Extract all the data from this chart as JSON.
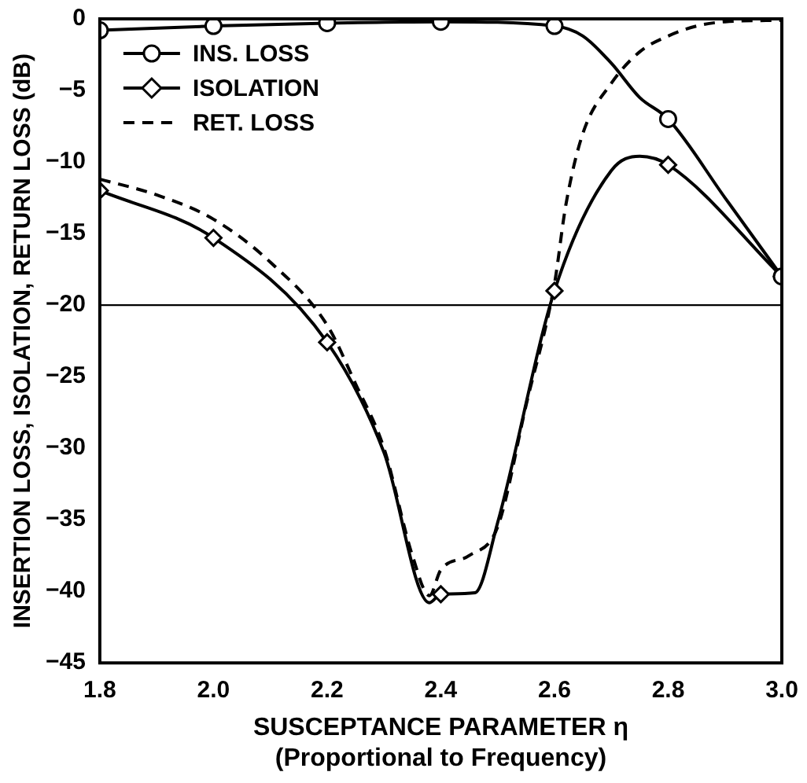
{
  "chart_data": {
    "type": "line",
    "xlabel": "SUSCEPTANCE PARAMETER η",
    "ylabel": "INSERTION LOSS, ISOLATION, RETURN LOSS (dB)",
    "annotations": [
      "(Proportional to Frequency)"
    ],
    "xlim": [
      1.8,
      3.0
    ],
    "xticks": [
      {
        "value": 1.8,
        "label": "1.8"
      },
      {
        "value": 2.0,
        "label": "2.0"
      },
      {
        "value": 2.2,
        "label": "2.2"
      },
      {
        "value": 2.4,
        "label": "2.4"
      },
      {
        "value": 2.6,
        "label": "2.6"
      },
      {
        "value": 2.8,
        "label": "2.8"
      },
      {
        "value": 3.0,
        "label": "3.0"
      }
    ],
    "ylim": [
      -45,
      0
    ],
    "yticks": [
      -45,
      -40,
      -35,
      -30,
      -25,
      -20,
      -15,
      -10,
      -5,
      0
    ],
    "grid": false,
    "legend": "top left",
    "ref_lines": [
      {
        "axis": "y",
        "value": -20,
        "color": "#000000"
      }
    ],
    "series": [
      {
        "name": "INS. LOSS",
        "color": "#000000",
        "marker": "circle",
        "line_style": "solid",
        "x": [
          1.8,
          2.0,
          2.2,
          2.4,
          2.6,
          2.65,
          2.7,
          2.75,
          2.8,
          2.9,
          3.0
        ],
        "values": [
          -0.8,
          -0.5,
          -0.3,
          -0.2,
          -0.5,
          -1.2,
          -3.1,
          -5.5,
          -7,
          -12.5,
          -18
        ]
      },
      {
        "name": "ISOLATION",
        "color": "#000000",
        "marker": "diamond",
        "line_style": "solid",
        "x": [
          1.8,
          2.0,
          2.2,
          2.3,
          2.38,
          2.4,
          2.46,
          2.5,
          2.6,
          2.7,
          2.75,
          2.8,
          3.0
        ],
        "values": [
          -12,
          -15.3,
          -22.6,
          -30.3,
          -40.8,
          -40.2,
          -40.1,
          -35.2,
          -19,
          -10.6,
          -9.6,
          -10.2,
          -18
        ]
      },
      {
        "name": "RET. LOSS",
        "color": "#000000",
        "marker": "none",
        "line_style": "dashed",
        "x": [
          1.8,
          1.9,
          2.0,
          2.1,
          2.2,
          2.25,
          2.3,
          2.35,
          2.38,
          2.4,
          2.45,
          2.5,
          2.55,
          2.6,
          2.62,
          2.65,
          2.7,
          2.75,
          2.8,
          2.85,
          2.9,
          3.0
        ],
        "values": [
          -11.2,
          -12.3,
          -14,
          -17,
          -21.4,
          -25.5,
          -30,
          -37.5,
          -40.3,
          -38.5,
          -37.5,
          -35.5,
          -27,
          -18.5,
          -13,
          -8,
          -4.5,
          -2.3,
          -1.2,
          -0.5,
          -0.2,
          -0.1
        ]
      }
    ]
  }
}
